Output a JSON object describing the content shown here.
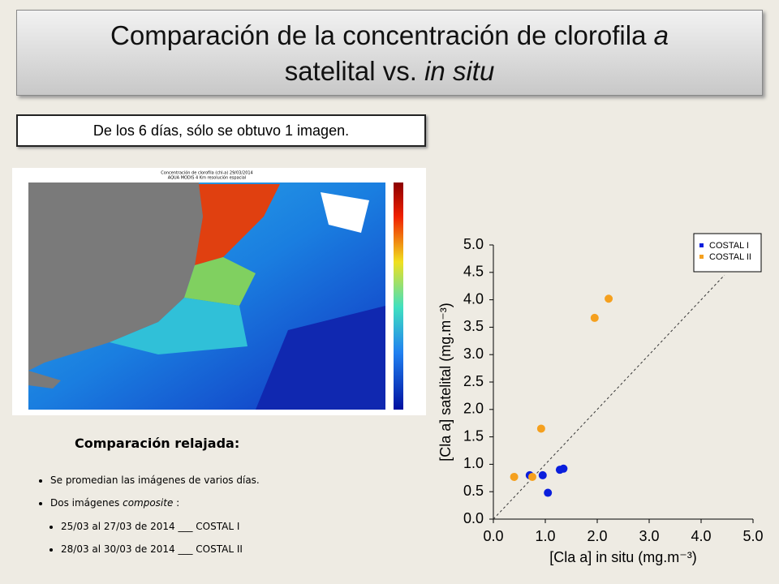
{
  "header": {
    "title": [
      "Comparación de la concentración de clorofila ",
      "a",
      "satelital vs. ",
      "in situ"
    ],
    "note": "De los 6 días, sólo se obtuvo 1 imagen."
  },
  "map": {
    "title": [
      "Concentración de clorofila (chl-a) 29/03/2014",
      "AQUA MODIS 4 Km resolución espacial"
    ]
  },
  "text": {
    "heading": "Comparación relajada:",
    "bullets": [
      "Se promedian las imágenes de varios días.",
      [
        "Dos imágenes ",
        "composite",
        " :"
      ]
    ],
    "sub_bullets": [
      "25/03 al 27/03 de 2014 ___ COSTAL I",
      "28/03 al 30/03 de 2014 ___ COSTAL II"
    ]
  },
  "chart_data": {
    "type": "scatter",
    "xlabel": "[Cla a] in situ  (mg.m⁻³)",
    "ylabel": "[Cla a] satelital  (mg.m⁻³)",
    "xlim": [
      0,
      5
    ],
    "ylim": [
      0,
      5
    ],
    "xticks": [
      {
        "value": 0,
        "label": "0.0"
      },
      {
        "value": 1,
        "label": "1.0"
      },
      {
        "value": 2,
        "label": "2.0"
      },
      {
        "value": 3,
        "label": "3.0"
      },
      {
        "value": 4,
        "label": "4.0"
      },
      {
        "value": 5,
        "label": "5.0"
      }
    ],
    "yticks": [
      {
        "value": 0,
        "label": "0.0"
      },
      {
        "value": 0.5,
        "label": "0.5"
      },
      {
        "value": 1,
        "label": "1.0"
      },
      {
        "value": 1.5,
        "label": "1.5"
      },
      {
        "value": 2,
        "label": "2.0"
      },
      {
        "value": 2.5,
        "label": "2.5"
      },
      {
        "value": 3,
        "label": "3.0"
      },
      {
        "value": 3.5,
        "label": "3.5"
      },
      {
        "value": 4,
        "label": "4.0"
      },
      {
        "value": 4.5,
        "label": "4.5"
      },
      {
        "value": 5,
        "label": "5.0"
      }
    ],
    "legend": "upper right",
    "series": [
      {
        "name": "COSTAL I",
        "color": "#0a1edc",
        "x": [
          0.7,
          0.95,
          1.05,
          1.28,
          1.35
        ],
        "values": [
          0.8,
          0.8,
          0.48,
          0.9,
          0.92
        ]
      },
      {
        "name": "COSTAL II",
        "color": "#f5a01e",
        "x": [
          0.4,
          0.75,
          0.92,
          1.95,
          2.22
        ],
        "values": [
          0.77,
          0.77,
          1.65,
          3.67,
          4.02
        ]
      }
    ]
  }
}
